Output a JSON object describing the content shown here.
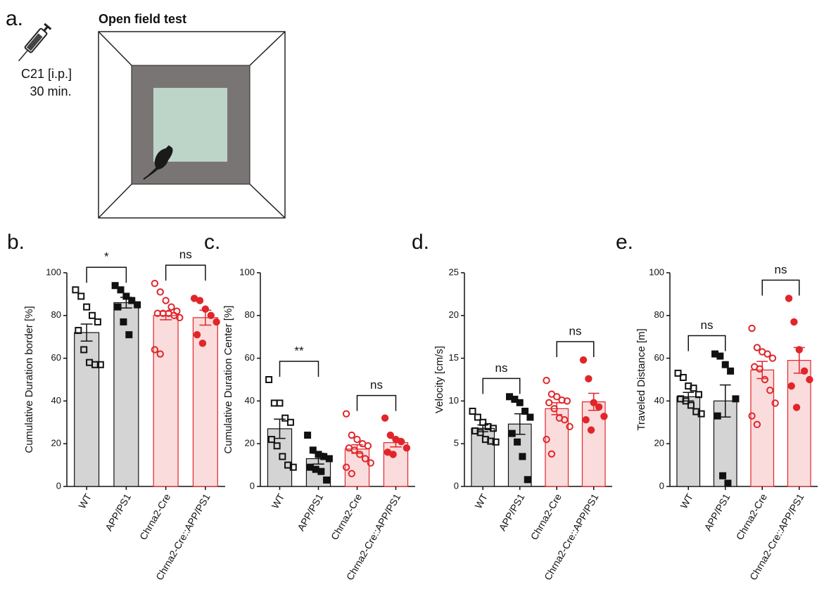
{
  "panel_a": {
    "label": "a.",
    "title": "Open field test",
    "injection": [
      "C21 [i.p.]",
      "30 min."
    ]
  },
  "chart_data": [
    {
      "type": "bar",
      "panel_label": "b.",
      "ylabel": "Cumulative Duration border [%]",
      "categories": [
        "WT",
        "APP/PS1",
        "Chrna2-Cre",
        "Chrna2-Cre::APP/PS1"
      ],
      "values": [
        72,
        86,
        80,
        79
      ],
      "errors": [
        4,
        2.5,
        2,
        3.5
      ],
      "points": [
        [
          92,
          89,
          84,
          80,
          77,
          73,
          64,
          58,
          57,
          57
        ],
        [
          94,
          92,
          89,
          87,
          85,
          84,
          77,
          71
        ],
        [
          95,
          91,
          87,
          84,
          82,
          81,
          81,
          81,
          80,
          79,
          64,
          62
        ],
        [
          88,
          87,
          83,
          80,
          77,
          71,
          67
        ]
      ],
      "significance": [
        "*",
        "ns"
      ],
      "bar_colors": [
        "#d4d4d4",
        "#d4d4d4",
        "#fbdcdc",
        "#fbdcdc"
      ],
      "edge_colors": [
        "#111111",
        "#111111",
        "#e0262b",
        "#e0262b"
      ],
      "markers": [
        "square",
        "square",
        "circle",
        "circle"
      ],
      "marker_filled": [
        false,
        true,
        false,
        true
      ],
      "ylim": [
        0,
        100
      ],
      "yticks": [
        0,
        20,
        40,
        60,
        80,
        100
      ]
    },
    {
      "type": "bar",
      "panel_label": "c.",
      "ylabel": "Cumulative Duration Center [%]",
      "categories": [
        "WT",
        "APP/PS1",
        "Chrna2-Cre",
        "Chrna2-Cre::APP/PS1"
      ],
      "values": [
        27,
        13,
        17.5,
        20.5
      ],
      "errors": [
        4.5,
        2.5,
        2,
        2
      ],
      "points": [
        [
          50,
          39,
          39,
          32,
          30,
          22,
          19,
          14,
          10,
          9
        ],
        [
          24,
          17,
          15,
          14,
          13,
          9,
          8,
          7,
          3
        ],
        [
          34,
          24,
          22,
          20,
          19,
          18,
          17,
          15,
          13,
          11,
          9,
          6
        ],
        [
          32,
          24,
          22,
          21,
          18,
          16,
          15
        ]
      ],
      "significance": [
        "**",
        "ns"
      ],
      "bar_colors": [
        "#d4d4d4",
        "#d4d4d4",
        "#fbdcdc",
        "#fbdcdc"
      ],
      "edge_colors": [
        "#111111",
        "#111111",
        "#e0262b",
        "#e0262b"
      ],
      "markers": [
        "square",
        "square",
        "circle",
        "circle"
      ],
      "marker_filled": [
        false,
        true,
        false,
        true
      ],
      "ylim": [
        0,
        100
      ],
      "yticks": [
        0,
        20,
        40,
        60,
        80,
        100
      ]
    },
    {
      "type": "bar",
      "panel_label": "d.",
      "ylabel": "Velocity [cm/s]",
      "categories": [
        "WT",
        "APP/PS1",
        "Chrna2-Cre",
        "Chrna2-Cre::APP/PS1"
      ],
      "values": [
        6.8,
        7.3,
        9.1,
        9.9
      ],
      "errors": [
        0.4,
        1.2,
        0.7,
        1
      ],
      "points": [
        [
          8.8,
          8.1,
          7.5,
          7,
          6.8,
          6.5,
          6.3,
          5.5,
          5.3,
          5.2
        ],
        [
          10.5,
          10.2,
          9.8,
          8.8,
          8.1,
          6.2,
          5.2,
          3.5,
          0.8
        ],
        [
          12.4,
          10.8,
          10.5,
          10.1,
          10,
          9.8,
          9.1,
          8,
          7.8,
          7,
          5.5,
          3.8
        ],
        [
          14.8,
          12.6,
          9.8,
          9.3,
          8.2,
          7.8,
          6.6
        ]
      ],
      "significance": [
        "ns",
        "ns"
      ],
      "bar_colors": [
        "#d4d4d4",
        "#d4d4d4",
        "#fbdcdc",
        "#fbdcdc"
      ],
      "edge_colors": [
        "#111111",
        "#111111",
        "#e0262b",
        "#e0262b"
      ],
      "markers": [
        "square",
        "square",
        "circle",
        "circle"
      ],
      "marker_filled": [
        false,
        true,
        false,
        true
      ],
      "ylim": [
        0,
        25
      ],
      "yticks": [
        0,
        5,
        10,
        15,
        20,
        25
      ]
    },
    {
      "type": "bar",
      "panel_label": "e.",
      "ylabel": "Traveled Distance [m]",
      "categories": [
        "WT",
        "APP/PS1",
        "Chrna2-Cre",
        "Chrna2-Cre::APP/PS1"
      ],
      "values": [
        42,
        40,
        54.5,
        59
      ],
      "errors": [
        2,
        7.5,
        4,
        6
      ],
      "points": [
        [
          53,
          51,
          47,
          46,
          43,
          41,
          40,
          38,
          35,
          34
        ],
        [
          62,
          61,
          57,
          54,
          41,
          33,
          5,
          1.5
        ],
        [
          74,
          65,
          63,
          62,
          60,
          56,
          55,
          50,
          45,
          39,
          33,
          29
        ],
        [
          88,
          77,
          64,
          54,
          50,
          47,
          37
        ]
      ],
      "significance": [
        "ns",
        "ns"
      ],
      "bar_colors": [
        "#d4d4d4",
        "#d4d4d4",
        "#fbdcdc",
        "#fbdcdc"
      ],
      "edge_colors": [
        "#111111",
        "#111111",
        "#e0262b",
        "#e0262b"
      ],
      "markers": [
        "square",
        "square",
        "circle",
        "circle"
      ],
      "marker_filled": [
        false,
        true,
        false,
        true
      ],
      "ylim": [
        0,
        100
      ],
      "yticks": [
        0,
        20,
        40,
        60,
        80,
        100
      ]
    }
  ]
}
